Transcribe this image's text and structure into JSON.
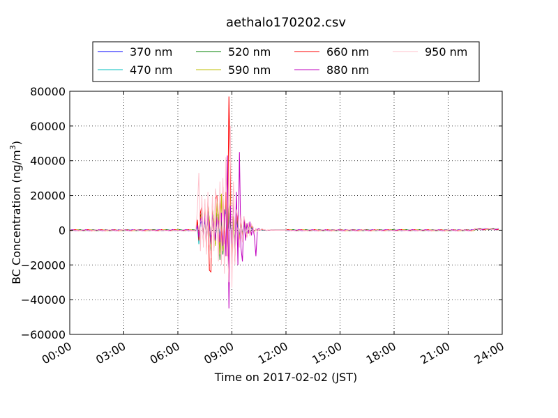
{
  "chart_data": {
    "type": "line",
    "title": "aethalo170202.csv",
    "xlabel": "Time on 2017-02-02 (JST)",
    "ylabel_main": "BC Concentration (ng/m",
    "ylabel_sup": "3",
    "ylabel_close": ")",
    "xlim": [
      "00:00",
      "24:00"
    ],
    "ylim": [
      -60000,
      80000
    ],
    "x_ticks": [
      "00:00",
      "03:00",
      "06:00",
      "09:00",
      "12:00",
      "15:00",
      "18:00",
      "21:00",
      "24:00"
    ],
    "y_ticks": [
      "80000",
      "60000",
      "40000",
      "20000",
      "0",
      "−20000",
      "−40000",
      "−60000"
    ],
    "grid": true,
    "legend_position": "top-center",
    "sample_interval_minutes": 5,
    "active_window_values_note": "series values are listed every 5 minutes from 07:00 to 12:00; outside this window values stay near 0",
    "series": [
      {
        "name": "370 nm",
        "color": "#0000ff",
        "values": [
          0,
          2000,
          -3000,
          4000,
          5000,
          -2000,
          6000,
          -4000,
          8000,
          3000,
          -6000,
          10000,
          2000,
          -5000,
          7000,
          4000,
          -3000,
          6000,
          -8000,
          5000,
          12000,
          -4000,
          6000,
          3000,
          -2000,
          4000,
          -6000,
          5000,
          2000,
          -3000,
          4000,
          -2000,
          3000,
          1000,
          -2000,
          2000,
          -1000,
          1000,
          500,
          -500,
          300,
          -200,
          100,
          0,
          200,
          0,
          100,
          -100,
          0,
          100,
          0,
          0,
          100,
          0,
          0,
          0,
          0,
          0,
          0,
          0,
          0
        ]
      },
      {
        "name": "470 nm",
        "color": "#00bfbf",
        "values": [
          0,
          3000,
          -8000,
          6000,
          12000,
          -5000,
          9000,
          -6000,
          14000,
          4000,
          -9000,
          12000,
          3000,
          -7000,
          9000,
          6000,
          -5000,
          8000,
          -12000,
          6000,
          15000,
          -6000,
          8000,
          4000,
          -3000,
          5000,
          -8000,
          6000,
          3000,
          -4000,
          5000,
          -3000,
          4000,
          1500,
          -2500,
          2500,
          -1500,
          1500,
          600,
          -600,
          400,
          -300,
          200,
          0,
          300,
          100,
          100,
          -100,
          0,
          100,
          0,
          0,
          100,
          0,
          0,
          0,
          0,
          0,
          0,
          0,
          0
        ]
      },
      {
        "name": "520 nm",
        "color": "#008000",
        "values": [
          0,
          4000,
          -5000,
          8000,
          10000,
          -6000,
          12000,
          -10000,
          16000,
          5000,
          -12000,
          14000,
          4000,
          -8000,
          10000,
          8000,
          -17000,
          10000,
          -14000,
          7000,
          18000,
          -8000,
          10000,
          6000,
          -4000,
          6000,
          -12000,
          7000,
          4000,
          -5000,
          6000,
          -4000,
          5000,
          2000,
          -3000,
          3000,
          -2000,
          2000,
          800,
          -800,
          500,
          -400,
          300,
          0,
          400,
          100,
          100,
          -100,
          0,
          100,
          0,
          0,
          100,
          0,
          0,
          0,
          0,
          0,
          0,
          0,
          0
        ]
      },
      {
        "name": "590 nm",
        "color": "#bfbf00",
        "values": [
          0,
          5000,
          -4000,
          7000,
          9000,
          -5000,
          11000,
          -8000,
          15000,
          6000,
          -10000,
          13000,
          5000,
          -9000,
          18000,
          9000,
          -14000,
          21000,
          -12000,
          8000,
          20000,
          -10000,
          12000,
          22000,
          -20000,
          8000,
          -14000,
          9000,
          5000,
          -6000,
          7000,
          -5000,
          6000,
          2500,
          -3500,
          3500,
          -2500,
          2500,
          1000,
          -1000,
          600,
          -500,
          400,
          0,
          500,
          200,
          200,
          -100,
          100,
          100,
          0,
          0,
          100,
          0,
          0,
          0,
          0,
          0,
          0,
          0,
          0
        ]
      },
      {
        "name": "660 nm",
        "color": "#ff0000",
        "values": [
          0,
          6000,
          -6000,
          10000,
          14000,
          -7000,
          15000,
          -12000,
          18000,
          -23000,
          -24000,
          16000,
          -10000,
          18000,
          20000,
          -15000,
          21000,
          -10000,
          25000,
          -8000,
          22000,
          -15000,
          77000,
          30000,
          -20000,
          24000,
          -18000,
          10000,
          6000,
          -8000,
          8000,
          -6000,
          7000,
          3000,
          -4000,
          4000,
          -3000,
          3000,
          1200,
          -1200,
          800,
          -600,
          500,
          0,
          600,
          200,
          300,
          -100,
          100,
          100,
          0,
          100,
          100,
          0,
          0,
          0,
          0,
          0,
          0,
          0,
          0
        ]
      },
      {
        "name": "880 nm",
        "color": "#bf00bf",
        "values": [
          0,
          3000,
          -4000,
          6000,
          8000,
          -5000,
          9000,
          -7000,
          10000,
          4000,
          -8000,
          9000,
          3000,
          -6000,
          8000,
          5000,
          -7000,
          10000,
          -9000,
          12000,
          -15000,
          43000,
          -45000,
          14000,
          -8000,
          18000,
          -12000,
          22000,
          -20000,
          45000,
          -10000,
          -18000,
          8000,
          -6000,
          4000,
          -2000,
          5000,
          -3000,
          2000,
          -4000,
          -15000,
          500,
          1000,
          0,
          800,
          200,
          300,
          -100,
          100,
          100,
          0,
          100,
          100,
          0,
          0,
          0,
          0,
          0,
          0,
          0,
          0
        ]
      },
      {
        "name": "950 nm",
        "color": "#ffc0cb",
        "values": [
          0,
          12000,
          33000,
          -12000,
          20000,
          -10000,
          18000,
          -14000,
          22000,
          -8000,
          -16000,
          20000,
          -12000,
          24000,
          16000,
          -18000,
          28000,
          -20000,
          30000,
          -25000,
          42000,
          -10000,
          -30000,
          60000,
          -33000,
          28000,
          -20000,
          12000,
          8000,
          -10000,
          9000,
          -7000,
          8000,
          3500,
          -4500,
          4500,
          -3500,
          3500,
          1500,
          -1500,
          1000,
          -800,
          600,
          0,
          800,
          300,
          400,
          -200,
          200,
          200,
          0,
          100,
          100,
          0,
          0,
          0,
          0,
          0,
          0,
          0,
          0
        ]
      }
    ]
  }
}
